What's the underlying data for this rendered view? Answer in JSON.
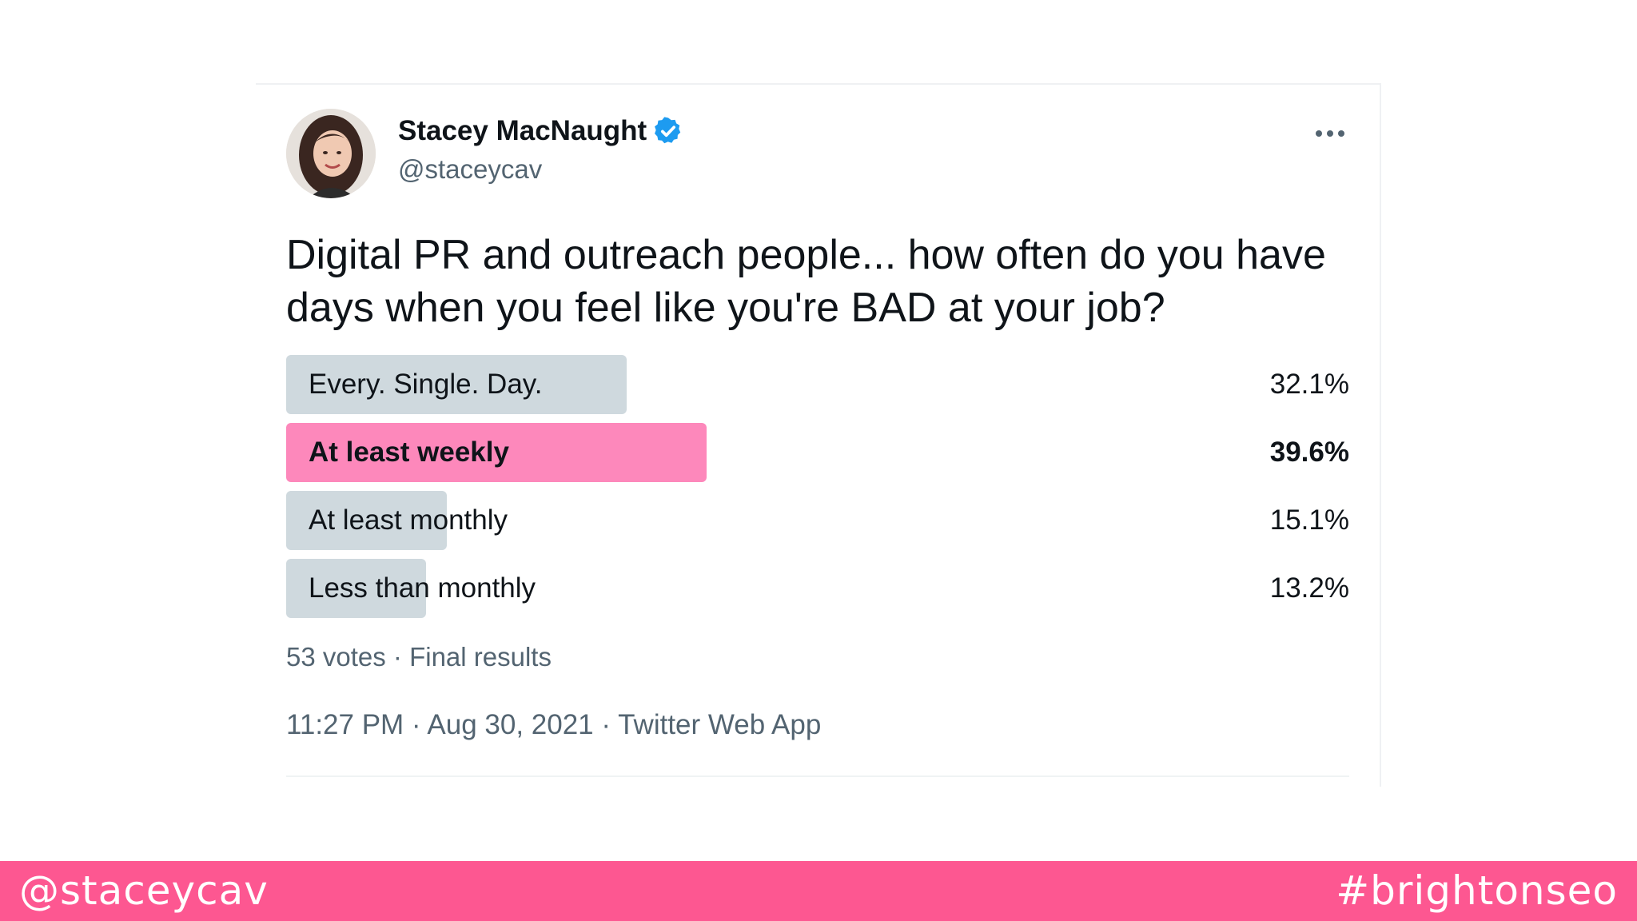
{
  "tweet": {
    "author": {
      "display_name": "Stacey MacNaught",
      "handle": "@staceycav",
      "verified": true,
      "avatar_icon": "user-avatar-photo"
    },
    "more_icon": "more-horizontal-icon",
    "text": "Digital PR and outreach people... how often do you have days when you feel like you're BAD at your job?",
    "poll": {
      "options": [
        {
          "label": "Every. Single. Day.",
          "percent_text": "32.1%",
          "percent": 32.1,
          "winner": false
        },
        {
          "label": "At least weekly",
          "percent_text": "39.6%",
          "percent": 39.6,
          "winner": true
        },
        {
          "label": "At least monthly",
          "percent_text": "15.1%",
          "percent": 15.1,
          "winner": false
        },
        {
          "label": "Less than monthly",
          "percent_text": "13.2%",
          "percent": 13.2,
          "winner": false
        }
      ],
      "summary": "53 votes · Final results"
    },
    "meta": "11:27 PM · Aug 30, 2021 · Twitter Web App"
  },
  "footer": {
    "left": "@staceycav",
    "right": "#brightonseo"
  },
  "colors": {
    "accent": "#fd5791",
    "winner_bar": "#fd88bb",
    "bar": "#cfd9de",
    "verified": "#1d9bf0",
    "secondary_text": "#536471"
  }
}
